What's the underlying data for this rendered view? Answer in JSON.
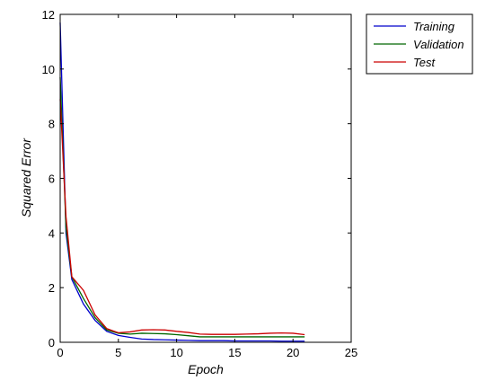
{
  "chart_data": {
    "type": "line",
    "title": "",
    "xlabel": "Epoch",
    "ylabel": "Squared Error",
    "xlim": [
      0,
      25
    ],
    "ylim": [
      0,
      12
    ],
    "xticks": [
      0,
      5,
      10,
      15,
      20,
      25
    ],
    "yticks": [
      0,
      2,
      4,
      6,
      8,
      10,
      12
    ],
    "grid": false,
    "legend_position": "outside-top-right",
    "series": [
      {
        "name": "Training",
        "color": "#0000cc",
        "x": [
          0,
          0.5,
          1,
          2,
          3,
          4,
          5,
          6,
          7,
          8,
          9,
          10,
          11,
          12,
          13,
          14,
          15,
          16,
          17,
          18,
          19,
          20,
          21
        ],
        "y": [
          11.7,
          4.0,
          2.3,
          1.4,
          0.8,
          0.4,
          0.25,
          0.18,
          0.12,
          0.1,
          0.09,
          0.08,
          0.07,
          0.06,
          0.06,
          0.06,
          0.05,
          0.05,
          0.05,
          0.05,
          0.04,
          0.04,
          0.04
        ]
      },
      {
        "name": "Validation",
        "color": "#006600",
        "x": [
          0,
          0.5,
          1,
          2,
          3,
          4,
          5,
          6,
          7,
          8,
          9,
          10,
          11,
          12,
          13,
          14,
          15,
          16,
          17,
          18,
          19,
          20,
          21
        ],
        "y": [
          9.7,
          4.2,
          2.4,
          1.6,
          0.9,
          0.45,
          0.33,
          0.3,
          0.33,
          0.32,
          0.31,
          0.28,
          0.24,
          0.2,
          0.2,
          0.2,
          0.2,
          0.2,
          0.2,
          0.2,
          0.2,
          0.2,
          0.2
        ]
      },
      {
        "name": "Test",
        "color": "#cc0000",
        "x": [
          0,
          0.5,
          1,
          2,
          3,
          4,
          5,
          6,
          7,
          8,
          9,
          10,
          11,
          12,
          13,
          14,
          15,
          16,
          17,
          18,
          19,
          20,
          21
        ],
        "y": [
          8.9,
          4.6,
          2.4,
          1.9,
          1.0,
          0.5,
          0.35,
          0.38,
          0.45,
          0.46,
          0.45,
          0.4,
          0.36,
          0.3,
          0.29,
          0.29,
          0.29,
          0.3,
          0.31,
          0.33,
          0.34,
          0.33,
          0.28
        ]
      }
    ]
  }
}
